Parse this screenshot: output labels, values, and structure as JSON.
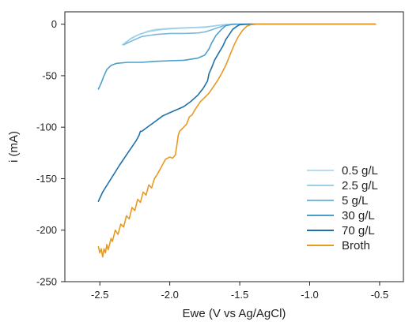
{
  "chart_data": {
    "type": "line",
    "title": "",
    "xlabel": "Ewe (V vs Ag/AgCl)",
    "ylabel": "i (mA)",
    "xlim": [
      -2.75,
      -0.33
    ],
    "ylim": [
      -250,
      12
    ],
    "xticks": [
      -2.5,
      -2.0,
      -1.5,
      -1.0,
      -0.5
    ],
    "xtick_labels": [
      "-2.5",
      "-2.0",
      "-1.5",
      "-1.0",
      "-0.5"
    ],
    "yticks": [
      0,
      -50,
      -100,
      -150,
      -200,
      -250
    ],
    "ytick_labels": [
      "0",
      "-50",
      "-100",
      "-150",
      "-200",
      "-250"
    ],
    "grid": false,
    "legend_position": "bottom-right",
    "series": [
      {
        "name": "0.5 g/L",
        "color": "#b9dcef",
        "points": [
          [
            -2.34,
            -20
          ],
          [
            -2.3,
            -16
          ],
          [
            -2.25,
            -12
          ],
          [
            -2.2,
            -9
          ],
          [
            -2.15,
            -6.5
          ],
          [
            -2.1,
            -5
          ],
          [
            -2.0,
            -4
          ],
          [
            -1.9,
            -3.5
          ],
          [
            -1.8,
            -3
          ],
          [
            -1.75,
            -2.5
          ],
          [
            -1.7,
            -2
          ],
          [
            -1.65,
            -1
          ],
          [
            -1.6,
            -0.5
          ],
          [
            -1.5,
            0
          ],
          [
            -1.0,
            0
          ],
          [
            -0.53,
            0
          ]
        ]
      },
      {
        "name": "2.5 g/L",
        "color": "#9dcfe8",
        "points": [
          [
            -2.32,
            -19
          ],
          [
            -2.28,
            -14
          ],
          [
            -2.22,
            -10
          ],
          [
            -2.15,
            -7
          ],
          [
            -2.05,
            -5
          ],
          [
            -1.95,
            -4
          ],
          [
            -1.85,
            -3.5
          ],
          [
            -1.75,
            -3
          ],
          [
            -1.7,
            -2
          ],
          [
            -1.65,
            -1
          ],
          [
            -1.6,
            -0.3
          ],
          [
            -1.5,
            0
          ],
          [
            -1.0,
            0
          ],
          [
            -0.53,
            0
          ]
        ]
      },
      {
        "name": "5 g/L",
        "color": "#7ab8da",
        "points": [
          [
            -2.33,
            -20
          ],
          [
            -2.3,
            -18
          ],
          [
            -2.25,
            -15
          ],
          [
            -2.2,
            -12
          ],
          [
            -2.15,
            -11
          ],
          [
            -2.1,
            -10
          ],
          [
            -2.0,
            -9
          ],
          [
            -1.9,
            -9
          ],
          [
            -1.8,
            -8.5
          ],
          [
            -1.75,
            -7.5
          ],
          [
            -1.7,
            -5.5
          ],
          [
            -1.65,
            -3
          ],
          [
            -1.6,
            -1
          ],
          [
            -1.55,
            0
          ],
          [
            -1.0,
            0
          ],
          [
            -0.53,
            0
          ]
        ]
      },
      {
        "name": "30 g/L",
        "color": "#4a9fcb",
        "points": [
          [
            -2.51,
            -63
          ],
          [
            -2.49,
            -57
          ],
          [
            -2.47,
            -50
          ],
          [
            -2.45,
            -44
          ],
          [
            -2.42,
            -40
          ],
          [
            -2.38,
            -38
          ],
          [
            -2.3,
            -37
          ],
          [
            -2.2,
            -37
          ],
          [
            -2.1,
            -36
          ],
          [
            -2.0,
            -35.5
          ],
          [
            -1.9,
            -35
          ],
          [
            -1.8,
            -33
          ],
          [
            -1.75,
            -30
          ],
          [
            -1.72,
            -24
          ],
          [
            -1.7,
            -18
          ],
          [
            -1.67,
            -11
          ],
          [
            -1.63,
            -5
          ],
          [
            -1.6,
            -1.5
          ],
          [
            -1.55,
            0
          ],
          [
            -1.0,
            0
          ],
          [
            -0.53,
            0
          ]
        ]
      },
      {
        "name": "70 g/L",
        "color": "#1f70a8",
        "points": [
          [
            -2.51,
            -172
          ],
          [
            -2.48,
            -163
          ],
          [
            -2.42,
            -150
          ],
          [
            -2.36,
            -137
          ],
          [
            -2.3,
            -125
          ],
          [
            -2.24,
            -113
          ],
          [
            -2.22,
            -108
          ],
          [
            -2.21,
            -104
          ],
          [
            -2.2,
            -104
          ],
          [
            -2.15,
            -99
          ],
          [
            -2.1,
            -94
          ],
          [
            -2.05,
            -89
          ],
          [
            -2.0,
            -86
          ],
          [
            -1.95,
            -83
          ],
          [
            -1.9,
            -80
          ],
          [
            -1.85,
            -75
          ],
          [
            -1.8,
            -69
          ],
          [
            -1.76,
            -62
          ],
          [
            -1.73,
            -55
          ],
          [
            -1.72,
            -48
          ],
          [
            -1.7,
            -42
          ],
          [
            -1.68,
            -35
          ],
          [
            -1.65,
            -28
          ],
          [
            -1.62,
            -21
          ],
          [
            -1.6,
            -15
          ],
          [
            -1.57,
            -9
          ],
          [
            -1.55,
            -5
          ],
          [
            -1.52,
            -2
          ],
          [
            -1.5,
            -0.5
          ],
          [
            -1.45,
            0
          ],
          [
            -1.0,
            0
          ],
          [
            -0.53,
            0
          ]
        ]
      },
      {
        "name": "Broth",
        "color": "#e79a22",
        "points": [
          [
            -2.51,
            -216
          ],
          [
            -2.5,
            -222
          ],
          [
            -2.49,
            -218
          ],
          [
            -2.48,
            -226
          ],
          [
            -2.47,
            -218
          ],
          [
            -2.46,
            -222
          ],
          [
            -2.45,
            -214
          ],
          [
            -2.44,
            -219
          ],
          [
            -2.42,
            -208
          ],
          [
            -2.41,
            -211
          ],
          [
            -2.39,
            -200
          ],
          [
            -2.37,
            -204
          ],
          [
            -2.35,
            -194
          ],
          [
            -2.33,
            -197
          ],
          [
            -2.31,
            -186
          ],
          [
            -2.29,
            -189
          ],
          [
            -2.27,
            -178
          ],
          [
            -2.25,
            -181
          ],
          [
            -2.23,
            -170
          ],
          [
            -2.21,
            -173
          ],
          [
            -2.19,
            -163
          ],
          [
            -2.17,
            -166
          ],
          [
            -2.15,
            -156
          ],
          [
            -2.13,
            -159
          ],
          [
            -2.11,
            -150
          ],
          [
            -2.09,
            -146
          ],
          [
            -2.07,
            -141
          ],
          [
            -2.05,
            -136
          ],
          [
            -2.03,
            -131
          ],
          [
            -2.0,
            -129
          ],
          [
            -1.98,
            -130
          ],
          [
            -1.96,
            -127
          ],
          [
            -1.95,
            -118
          ],
          [
            -1.94,
            -108
          ],
          [
            -1.93,
            -104
          ],
          [
            -1.9,
            -100
          ],
          [
            -1.88,
            -97
          ],
          [
            -1.86,
            -90
          ],
          [
            -1.84,
            -88
          ],
          [
            -1.82,
            -83
          ],
          [
            -1.8,
            -79
          ],
          [
            -1.78,
            -75
          ],
          [
            -1.75,
            -71
          ],
          [
            -1.72,
            -67
          ],
          [
            -1.69,
            -61
          ],
          [
            -1.66,
            -55
          ],
          [
            -1.63,
            -48
          ],
          [
            -1.6,
            -40
          ],
          [
            -1.57,
            -30
          ],
          [
            -1.54,
            -20
          ],
          [
            -1.51,
            -12
          ],
          [
            -1.48,
            -6
          ],
          [
            -1.45,
            -2
          ],
          [
            -1.42,
            -0.5
          ],
          [
            -1.38,
            0
          ],
          [
            -1.0,
            0
          ],
          [
            -0.53,
            0
          ]
        ]
      }
    ]
  }
}
